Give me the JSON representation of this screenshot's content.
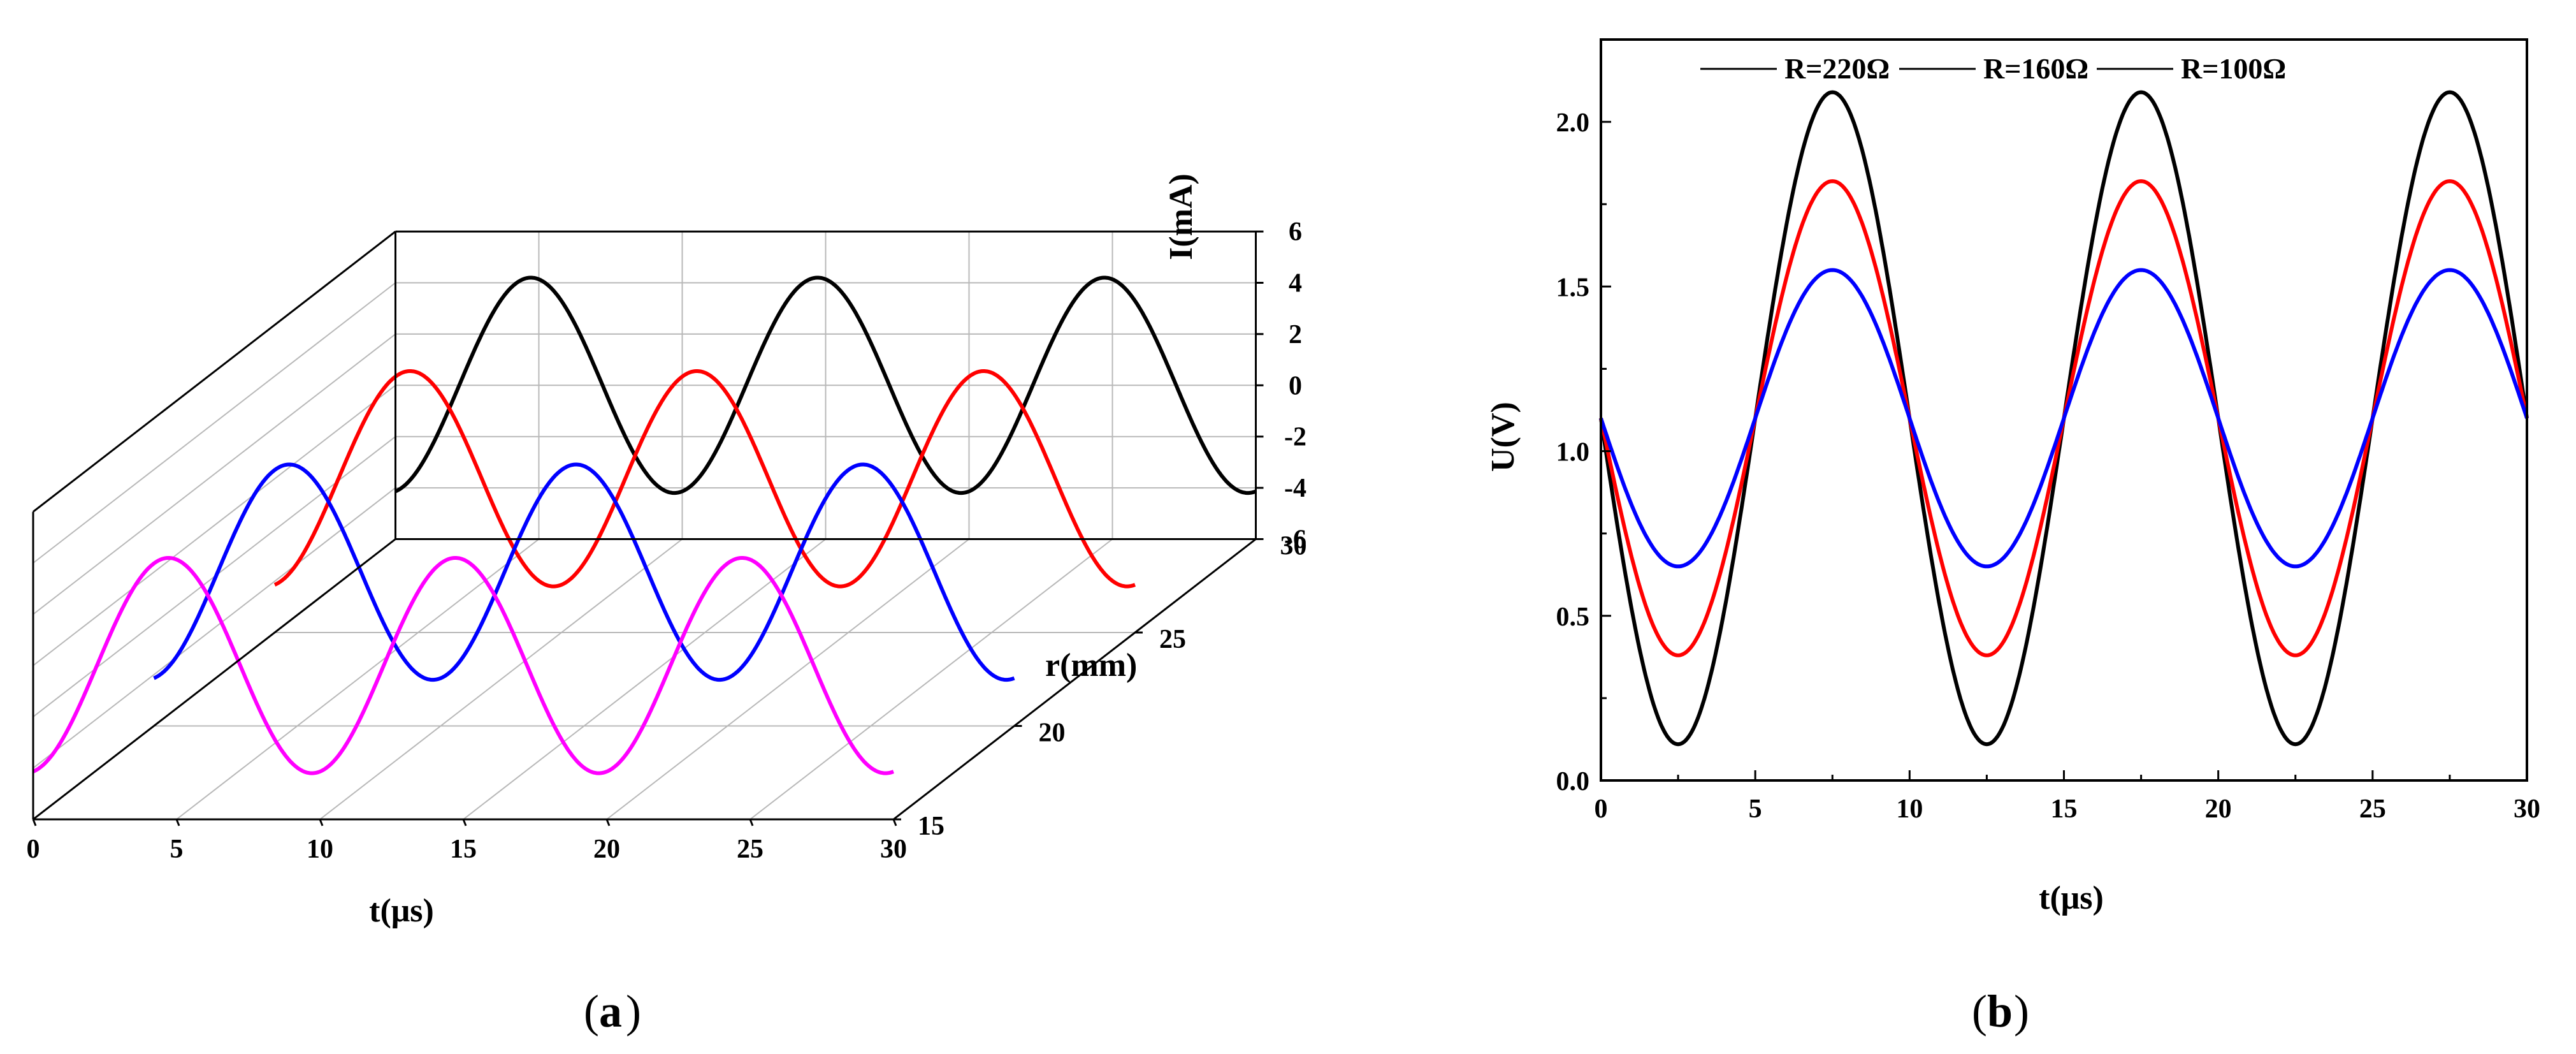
{
  "chart_data": [
    {
      "panel": "a",
      "type": "line",
      "caption": "a",
      "xlabel": "t(μs)",
      "ylabel": "r(mm)",
      "zlabel": "I(mA)",
      "xlim": [
        0,
        30
      ],
      "zlim": [
        -6,
        6
      ],
      "x_ticks": [
        "0",
        "5",
        "10",
        "15",
        "20",
        "25",
        "30"
      ],
      "y_ticks": [
        "15",
        "20",
        "25",
        "30"
      ],
      "z_ticks": [
        "-6",
        "-4",
        "-2",
        "0",
        "2",
        "4",
        "6"
      ],
      "series": [
        {
          "r": 30,
          "color": "#000000",
          "amplitude": 4.2,
          "period": 10,
          "phase_deg": -80
        },
        {
          "r": 25,
          "color": "#ff0000",
          "amplitude": 4.2,
          "period": 10,
          "phase_deg": -80
        },
        {
          "r": 20,
          "color": "#0000ff",
          "amplitude": 4.2,
          "period": 10,
          "phase_deg": -80
        },
        {
          "r": 15,
          "color": "#ff00ff",
          "amplitude": 4.2,
          "period": 10,
          "phase_deg": -80
        }
      ],
      "grid": true
    },
    {
      "panel": "b",
      "type": "line",
      "caption": "b",
      "xlabel": "t(μs)",
      "ylabel": "U(V)",
      "xlim": [
        0,
        30
      ],
      "ylim": [
        0,
        2.25
      ],
      "x_ticks": [
        "0",
        "5",
        "10",
        "15",
        "20",
        "25",
        "30"
      ],
      "y_ticks": [
        "0.0",
        "0.5",
        "1.0",
        "1.5",
        "2.0"
      ],
      "legend_position": "top",
      "series": [
        {
          "name": "R=220Ω",
          "color": "#000000",
          "offset": 1.1,
          "amplitude": 0.99,
          "period": 10,
          "min_at": 2.5
        },
        {
          "name": "R=160Ω",
          "color": "#ff0000",
          "offset": 1.1,
          "amplitude": 0.72,
          "period": 10,
          "min_at": 2.5
        },
        {
          "name": "R=100Ω",
          "color": "#0000ff",
          "offset": 1.1,
          "amplitude": 0.45,
          "period": 10,
          "min_at": 2.5
        }
      ],
      "grid": false
    }
  ]
}
